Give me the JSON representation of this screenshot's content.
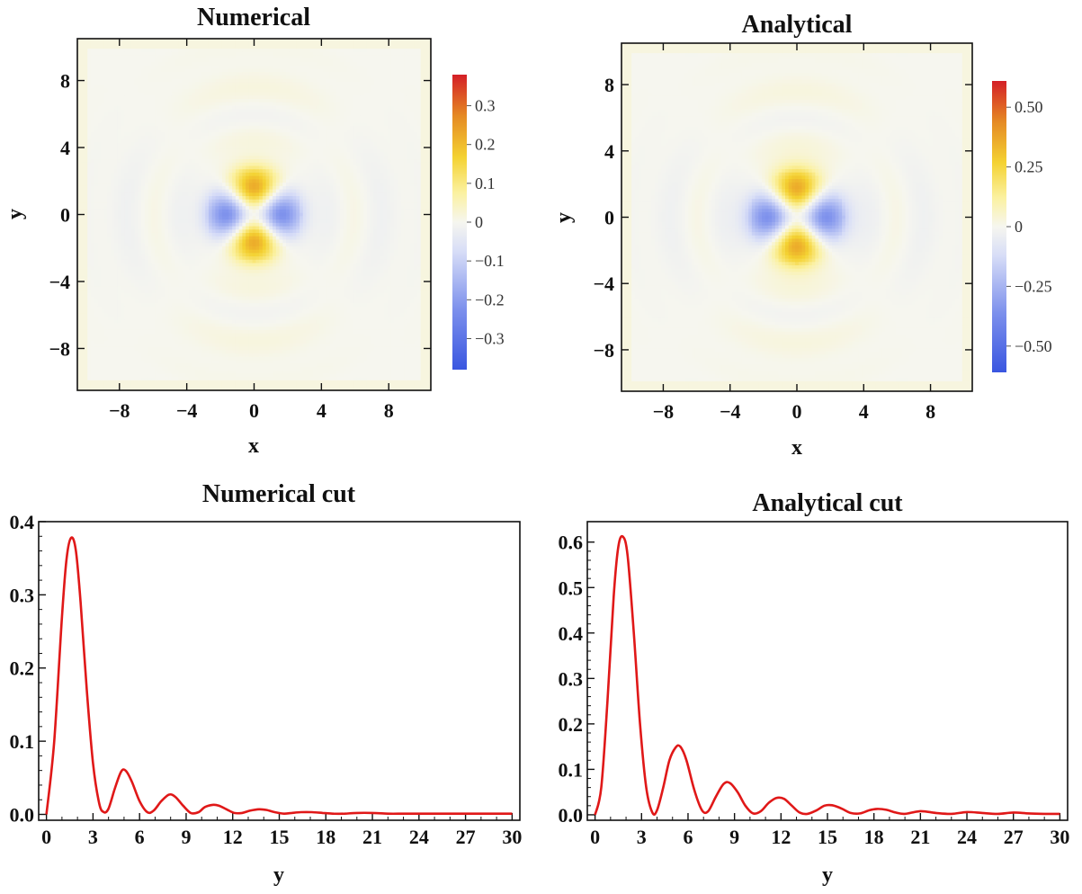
{
  "chart_data": [
    {
      "type": "heatmap",
      "title": "Numerical",
      "xlabel": "x",
      "ylabel": "y",
      "xlim": [
        -10.5,
        10.5
      ],
      "ylim": [
        -10.5,
        10.5
      ],
      "xticks": [
        -8,
        -4,
        0,
        4,
        8
      ],
      "yticks": [
        -8,
        -4,
        0,
        4,
        8
      ],
      "tick_labels_x": [
        "−8",
        "−4",
        "0",
        "4",
        "8"
      ],
      "tick_labels_y": [
        "−8",
        "−4",
        "0",
        "4",
        "8"
      ],
      "colorbar": {
        "range": [
          -0.38,
          0.38
        ],
        "ticks": [
          0.3,
          0.2,
          0.1,
          0,
          -0.1,
          -0.2,
          -0.3
        ],
        "tick_labels": [
          "0.3",
          "0.2",
          "0.1",
          "0",
          "−0.1",
          "−0.2",
          "−0.3"
        ]
      },
      "lobes": {
        "peak_value": 0.38,
        "positive_at": [
          [
            0,
            1.7
          ],
          [
            0,
            -1.7
          ]
        ],
        "negative_at": [
          [
            -1.9,
            0
          ],
          [
            1.9,
            0
          ]
        ]
      }
    },
    {
      "type": "heatmap",
      "title": "Analytical",
      "xlabel": "x",
      "ylabel": "y",
      "xlim": [
        -10.5,
        10.5
      ],
      "ylim": [
        -10.5,
        10.5
      ],
      "xticks": [
        -8,
        -4,
        0,
        4,
        8
      ],
      "yticks": [
        -8,
        -4,
        0,
        4,
        8
      ],
      "tick_labels_x": [
        "−8",
        "−4",
        "0",
        "4",
        "8"
      ],
      "tick_labels_y": [
        "−8",
        "−4",
        "0",
        "4",
        "8"
      ],
      "colorbar": {
        "range": [
          -0.61,
          0.61
        ],
        "ticks": [
          0.5,
          0.25,
          0,
          -0.25,
          -0.5
        ],
        "tick_labels": [
          "0.50",
          "0.25",
          "0",
          "−0.25",
          "−0.50"
        ]
      },
      "lobes": {
        "peak_value": 0.61,
        "positive_at": [
          [
            0,
            1.8
          ],
          [
            0,
            -1.8
          ]
        ],
        "negative_at": [
          [
            -2.0,
            0
          ],
          [
            2.0,
            0
          ]
        ]
      }
    },
    {
      "type": "line",
      "title": "Numerical cut",
      "xlabel": "y",
      "ylabel": "",
      "xlim": [
        -0.5,
        30.5
      ],
      "ylim": [
        -0.008,
        0.4
      ],
      "xticks": [
        "0",
        "3",
        "6",
        "9",
        "12",
        "15",
        "18",
        "21",
        "24",
        "27",
        "30"
      ],
      "yticks": [
        "0.0",
        "0.1",
        "0.2",
        "0.3",
        "0.4"
      ],
      "ytick_values": [
        0,
        0.1,
        0.2,
        0.3,
        0.4
      ],
      "color": "#e01818",
      "x": [
        0,
        0.5,
        1.0,
        1.3,
        1.6,
        1.9,
        2.2,
        2.6,
        3.0,
        3.4,
        3.7,
        4.0,
        4.4,
        4.8,
        5.1,
        5.5,
        6.0,
        6.5,
        6.9,
        7.4,
        7.9,
        8.3,
        8.8,
        9.3,
        9.8,
        10.2,
        10.7,
        11.1,
        11.6,
        12.1,
        12.6,
        13.1,
        13.7,
        14.2,
        14.7,
        15.3,
        15.8,
        16.4,
        17.1,
        17.8,
        18.5,
        19.2,
        20.0,
        21.0,
        22.0,
        23.0,
        24.0,
        26.0,
        28.0,
        30.0
      ],
      "y": [
        0.0,
        0.1,
        0.27,
        0.35,
        0.378,
        0.36,
        0.29,
        0.17,
        0.07,
        0.015,
        0.003,
        0.008,
        0.035,
        0.058,
        0.06,
        0.045,
        0.018,
        0.003,
        0.005,
        0.018,
        0.027,
        0.024,
        0.012,
        0.002,
        0.003,
        0.01,
        0.013,
        0.012,
        0.007,
        0.002,
        0.002,
        0.005,
        0.007,
        0.006,
        0.003,
        0.001,
        0.002,
        0.003,
        0.003,
        0.002,
        0.001,
        0.001,
        0.002,
        0.002,
        0.001,
        0.001,
        0.001,
        0.001,
        0.001,
        0.001
      ]
    },
    {
      "type": "line",
      "title": "Analytical cut",
      "xlabel": "y",
      "ylabel": "",
      "xlim": [
        -0.5,
        30.5
      ],
      "ylim": [
        -0.012,
        0.645
      ],
      "xticks": [
        "0",
        "3",
        "6",
        "9",
        "12",
        "15",
        "18",
        "21",
        "24",
        "27",
        "30"
      ],
      "yticks": [
        "0.0",
        "0.1",
        "0.2",
        "0.3",
        "0.4",
        "0.5",
        "0.6"
      ],
      "ytick_values": [
        0,
        0.1,
        0.2,
        0.3,
        0.4,
        0.5,
        0.6
      ],
      "color": "#e01818",
      "x": [
        0,
        0.4,
        0.8,
        1.2,
        1.5,
        1.8,
        2.1,
        2.5,
        2.9,
        3.3,
        3.7,
        4.0,
        4.4,
        4.8,
        5.2,
        5.5,
        5.9,
        6.4,
        6.9,
        7.3,
        7.8,
        8.3,
        8.7,
        9.2,
        9.7,
        10.2,
        10.7,
        11.2,
        11.7,
        12.2,
        12.7,
        13.2,
        13.7,
        14.3,
        14.8,
        15.3,
        15.9,
        16.5,
        17.1,
        17.7,
        18.2,
        18.8,
        19.4,
        20.0,
        21.0,
        22.0,
        23.0,
        24.0,
        25.0,
        26.0,
        27.0,
        28.0,
        29.0,
        30.0
      ],
      "y": [
        0.0,
        0.06,
        0.25,
        0.48,
        0.59,
        0.612,
        0.57,
        0.4,
        0.2,
        0.06,
        0.005,
        0.01,
        0.06,
        0.12,
        0.148,
        0.15,
        0.12,
        0.055,
        0.01,
        0.008,
        0.04,
        0.068,
        0.07,
        0.05,
        0.02,
        0.003,
        0.008,
        0.026,
        0.037,
        0.035,
        0.02,
        0.005,
        0.002,
        0.01,
        0.02,
        0.021,
        0.014,
        0.004,
        0.003,
        0.01,
        0.013,
        0.011,
        0.005,
        0.002,
        0.008,
        0.004,
        0.002,
        0.006,
        0.004,
        0.002,
        0.005,
        0.003,
        0.002,
        0.002
      ]
    }
  ]
}
